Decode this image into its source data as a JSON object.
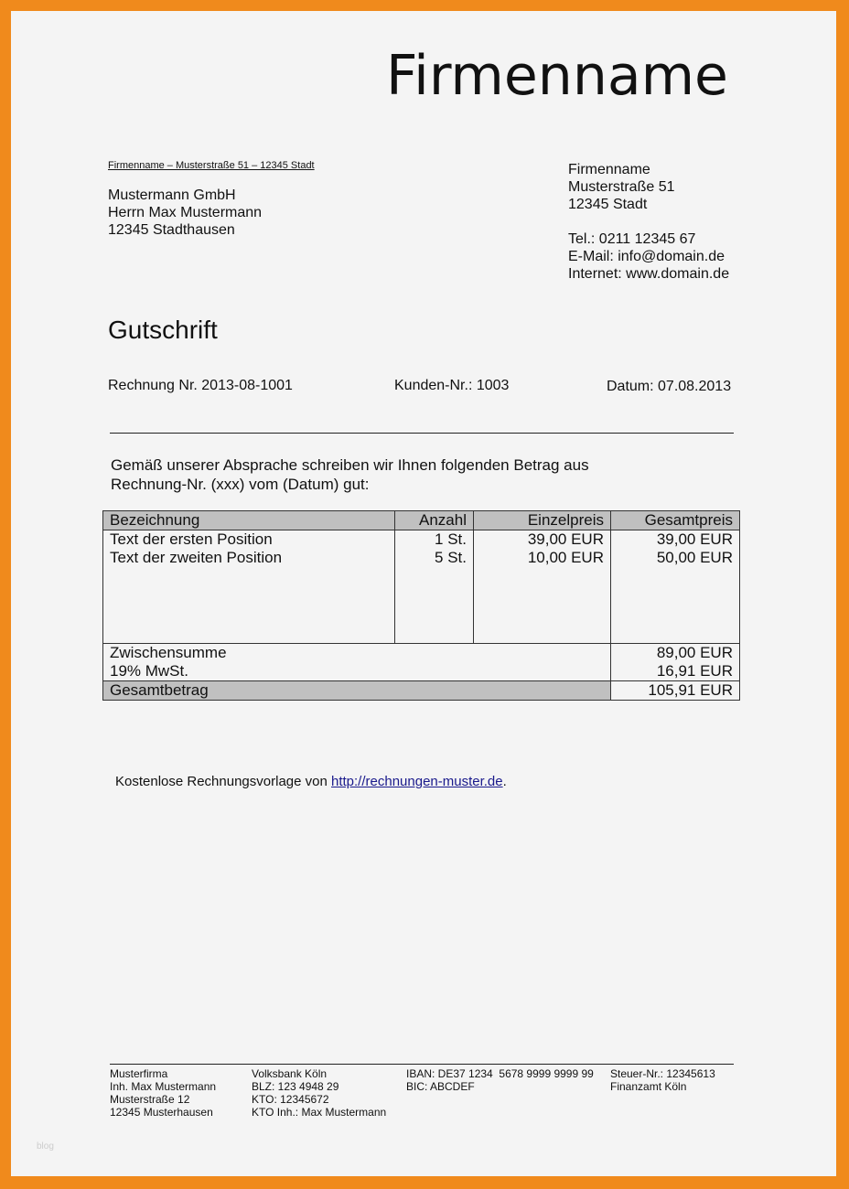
{
  "logo": "Firmenname",
  "sender_line": "Firmenname – Musterstraße 51 – 12345 Stadt",
  "recipient": [
    "Mustermann GmbH",
    "Herrn Max Mustermann",
    "12345 Stadthausen"
  ],
  "company": [
    "Firmenname",
    "Musterstraße 51",
    "12345 Stadt",
    "",
    "Tel.: 0211 12345 67",
    "E-Mail: info@domain.de",
    "Internet: www.domain.de"
  ],
  "title": "Gutschrift",
  "meta": {
    "invoice": "Rechnung Nr. 2013-08-1001",
    "customer": "Kunden-Nr.: 1003",
    "date": "Datum: 07.08.2013"
  },
  "intro": [
    "Gemäß unserer Absprache schreiben wir Ihnen folgenden Betrag aus",
    "Rechnung-Nr. (xxx) vom (Datum) gut:"
  ],
  "table": {
    "headers": [
      "Bezeichnung",
      "Anzahl",
      "Einzelpreis",
      "Gesamtpreis"
    ],
    "rows": [
      [
        "Text der ersten Position",
        "1 St.",
        "39,00 EUR",
        "39,00 EUR"
      ],
      [
        "Text der zweiten Position",
        "5 St.",
        "10,00 EUR",
        "50,00 EUR"
      ]
    ],
    "subtotal_label": "Zwischensumme",
    "subtotal": "89,00 EUR",
    "tax_label": "19% MwSt.",
    "tax": "16,91 EUR",
    "total_label": "Gesamtbetrag",
    "total": "105,91 EUR"
  },
  "credit": {
    "text": "Kostenlose Rechnungsvorlage von ",
    "link": "http://rechnungen-muster.de",
    "suffix": "."
  },
  "footer": {
    "col1": [
      "Musterfirma",
      "Inh. Max Mustermann",
      "Musterstraße 12",
      "12345 Musterhausen"
    ],
    "col2": [
      "Volksbank Köln",
      "BLZ: 123 4948 29",
      "KTO: 12345672",
      "KTO Inh.: Max Mustermann"
    ],
    "col3": [
      "IBAN: DE37 1234  5678 9999 9999 99",
      "BIC: ABCDEF"
    ],
    "col4": [
      "Steuer-Nr.: 12345613",
      "Finanzamt Köln"
    ]
  },
  "watermark": "blog",
  "colors": {
    "border": "#f08a1c",
    "header_fill": "#c0c0c0"
  }
}
